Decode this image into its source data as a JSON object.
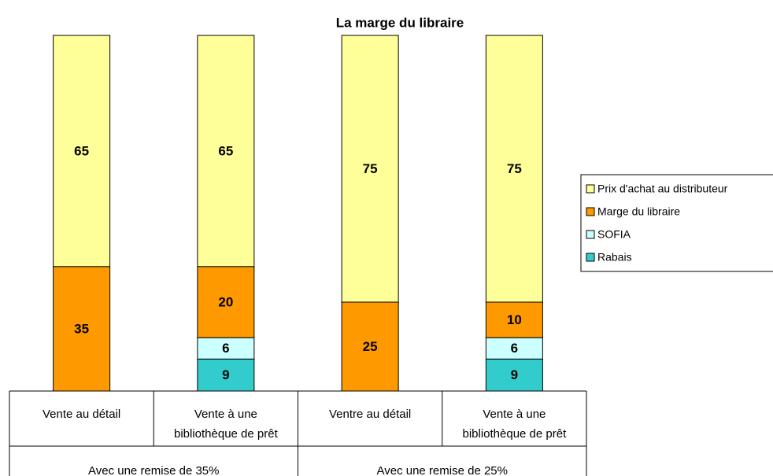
{
  "chart_data": {
    "type": "stacked_bar",
    "title": "La marge du libraire",
    "categories": [
      "Vente au détail",
      "Vente à une\nbibliothèque de prêt",
      "Ventre au détail",
      "Vente à une\nbibliothèque de prêt"
    ],
    "groups": [
      "Avec une remise de 35%",
      "Avec une remise de 25%"
    ],
    "series": [
      {
        "name": "Prix d'achat au distributeur",
        "color": "#FFFF99",
        "values": [
          65,
          65,
          75,
          75
        ]
      },
      {
        "name": "Marge du libraire",
        "color": "#FF9900",
        "values": [
          35,
          20,
          25,
          10
        ]
      },
      {
        "name": "SOFIA",
        "color": "#CCFFFF",
        "values": [
          null,
          6,
          null,
          6
        ]
      },
      {
        "name": "Rabais",
        "color": "#33CCCC",
        "values": [
          null,
          9,
          null,
          9
        ]
      }
    ]
  }
}
